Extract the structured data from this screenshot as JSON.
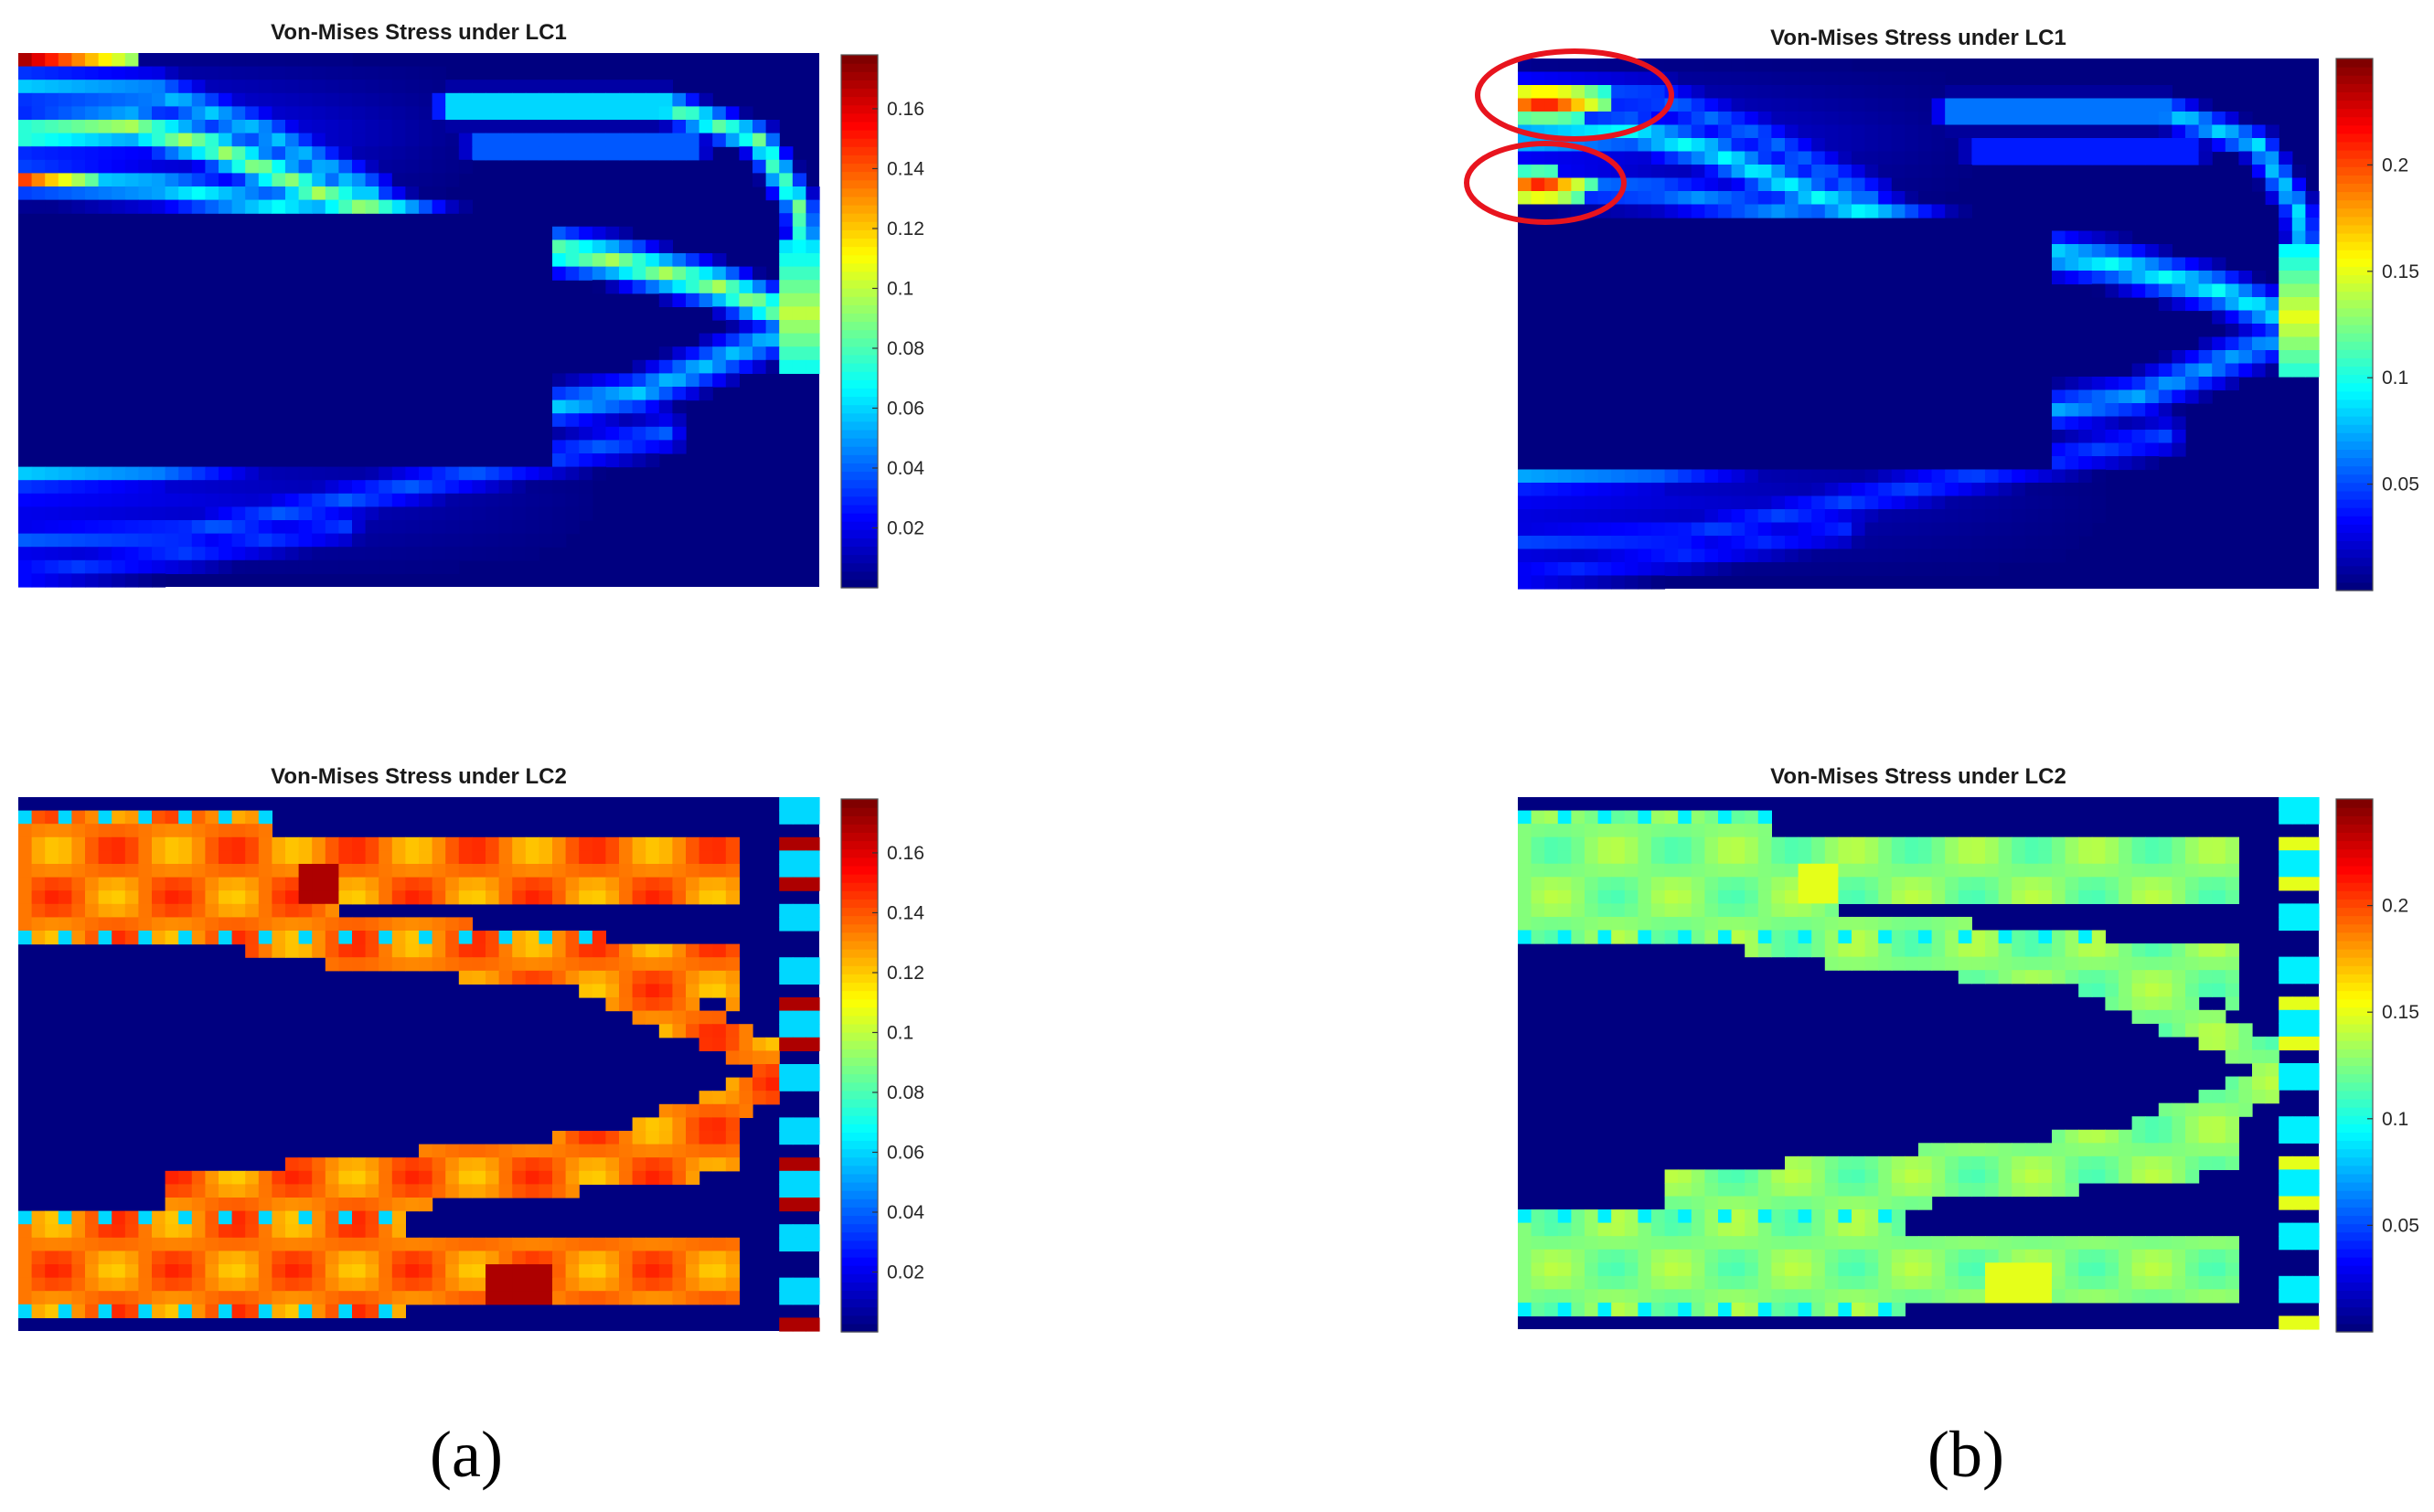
{
  "chart_data": [
    {
      "type": "heatmap",
      "title": "Von-Mises Stress under LC1",
      "subfigure": "a",
      "colormap": "jet",
      "colorbar_ticks": [
        "0.02",
        "0.04",
        "0.06",
        "0.08",
        "0.1",
        "0.12",
        "0.14",
        "0.16"
      ],
      "colorbar_range": [
        0,
        0.178
      ],
      "values": {
        "background": 0.0,
        "left_top_edge_peak": 0.17,
        "upper_band": 0.06,
        "lower_band": 0.04,
        "right_tip_peak": 0.1
      }
    },
    {
      "type": "heatmap",
      "title": "Von-Mises Stress under LC1",
      "subfigure": "b",
      "colormap": "jet",
      "colorbar_ticks": [
        "0.05",
        "0.1",
        "0.15",
        "0.2"
      ],
      "colorbar_range": [
        0,
        0.25
      ],
      "annotations": [
        "red-ellipse-upper-left",
        "red-ellipse-lower-left"
      ],
      "values": {
        "background": 0.0,
        "left_hotspot_peak": 0.23,
        "upper_band": 0.06,
        "lower_band": 0.05,
        "right_tip_peak": 0.15
      }
    },
    {
      "type": "heatmap",
      "title": "Von-Mises Stress under LC2",
      "subfigure": "a",
      "colormap": "jet",
      "colorbar_ticks": [
        "0.02",
        "0.04",
        "0.06",
        "0.08",
        "0.1",
        "0.12",
        "0.14",
        "0.16"
      ],
      "colorbar_range": [
        0,
        0.178
      ],
      "values": {
        "background": 0.0,
        "band_level": 0.15,
        "band_peak": 0.17,
        "edge_level": 0.06
      }
    },
    {
      "type": "heatmap",
      "title": "Von-Mises Stress under LC2",
      "subfigure": "b",
      "colormap": "jet",
      "colorbar_ticks": [
        "0.05",
        "0.1",
        "0.15",
        "0.2"
      ],
      "colorbar_range": [
        0,
        0.25
      ],
      "values": {
        "background": 0.0,
        "band_level": 0.14,
        "band_peak": 0.15,
        "edge_level": 0.09
      }
    }
  ],
  "subfigure_labels": [
    "(a)",
    "(b)"
  ]
}
